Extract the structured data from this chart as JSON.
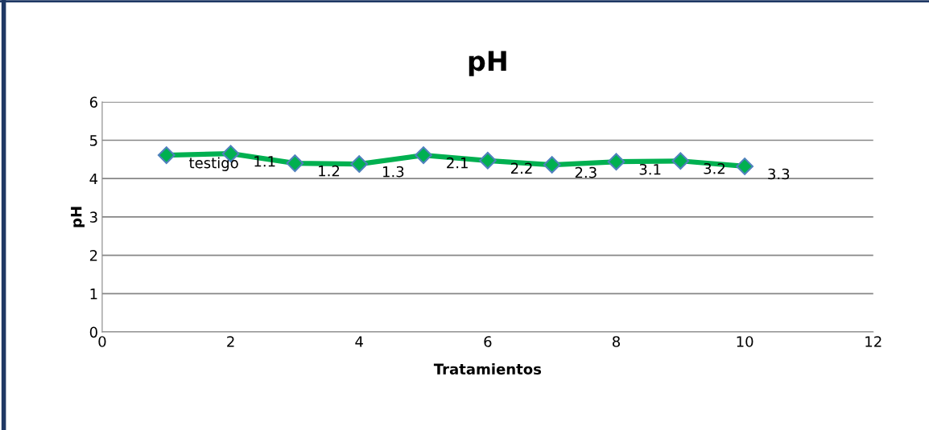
{
  "chart_data": {
    "type": "line",
    "title": "pH",
    "xlabel": "Tratamientos",
    "ylabel": "pH",
    "x": [
      1,
      2,
      3,
      4,
      5,
      6,
      7,
      8,
      9,
      10
    ],
    "series": [
      {
        "color": "#00b050",
        "values": [
          4.61,
          4.65,
          4.4,
          4.38,
          4.61,
          4.47,
          4.36,
          4.44,
          4.46,
          4.32
        ]
      }
    ],
    "xlim": [
      0,
      12
    ],
    "xticks": [
      0,
      2,
      4,
      6,
      8,
      10,
      12
    ],
    "ylim": [
      0,
      6
    ],
    "yticks": [
      0,
      1,
      2,
      3,
      4,
      5,
      6
    ],
    "grid": "y",
    "marker": "diamond",
    "line_style": "solid",
    "annotations": [
      {
        "text": "testigo",
        "x": 1,
        "y": 4.61
      },
      {
        "text": "1.1",
        "x": 2,
        "y": 4.65
      },
      {
        "text": "1.2",
        "x": 3,
        "y": 4.4
      },
      {
        "text": "1.3",
        "x": 4,
        "y": 4.38
      },
      {
        "text": "2.1",
        "x": 5,
        "y": 4.61
      },
      {
        "text": "2.2",
        "x": 6,
        "y": 4.47
      },
      {
        "text": "2.3",
        "x": 7,
        "y": 4.36
      },
      {
        "text": "3.1",
        "x": 8,
        "y": 4.44
      },
      {
        "text": "3.2",
        "x": 9,
        "y": 4.46
      },
      {
        "text": "3.3",
        "x": 10,
        "y": 4.32
      }
    ]
  }
}
